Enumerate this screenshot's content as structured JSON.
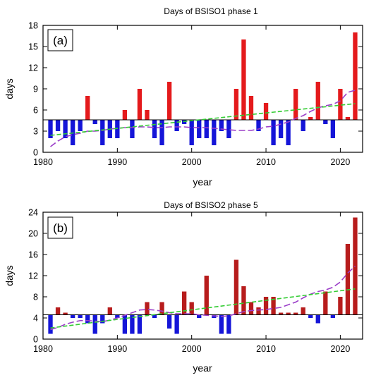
{
  "chart_data": [
    {
      "type": "bar",
      "panel_label": "(a)",
      "title": "Days of BSISO1 phase 1",
      "xlabel": "year",
      "ylabel": "days",
      "xlim": [
        1980,
        2023
      ],
      "ylim": [
        0,
        18
      ],
      "xticks": [
        1980,
        1990,
        2000,
        2010,
        2020
      ],
      "yticks": [
        0,
        3,
        6,
        9,
        12,
        15,
        18
      ],
      "baseline": 4.6,
      "x": [
        1981,
        1982,
        1983,
        1984,
        1985,
        1986,
        1987,
        1988,
        1989,
        1990,
        1991,
        1992,
        1993,
        1994,
        1995,
        1996,
        1997,
        1998,
        1999,
        2000,
        2001,
        2002,
        2003,
        2004,
        2005,
        2006,
        2007,
        2008,
        2009,
        2010,
        2011,
        2012,
        2013,
        2014,
        2015,
        2016,
        2017,
        2018,
        2019,
        2020,
        2021,
        2022
      ],
      "values": [
        2,
        3,
        2,
        1,
        3,
        8,
        4,
        1,
        2,
        2,
        6,
        2,
        9,
        6,
        2,
        1,
        10,
        3,
        4,
        1,
        2,
        2,
        1,
        3,
        2,
        9,
        16,
        8,
        3,
        7,
        1,
        2,
        1,
        9,
        3,
        5,
        10,
        4,
        2,
        9,
        5,
        17
      ],
      "above_color": "#e41a1c",
      "below_color": "#1515d8",
      "series": [
        {
          "values": [
            0.8,
            1.6,
            2.2,
            2.5,
            2.7,
            3.0,
            3.0,
            3.1,
            3.3,
            3.4,
            3.5,
            3.5,
            3.6,
            3.6,
            3.5,
            3.5,
            3.6,
            3.6,
            3.6,
            3.5,
            3.5,
            3.5,
            3.4,
            3.3,
            3.2,
            3.1,
            3.1,
            3.1,
            3.3,
            3.6,
            3.7,
            4.0,
            4.3,
            4.8,
            5.2,
            5.8,
            6.3,
            6.6,
            6.8,
            7.3,
            8.5,
            8.8
          ],
          "color": "#9c3fc9"
        },
        {
          "x": [
            1981,
            2022
          ],
          "values": [
            2.4,
            6.9
          ],
          "color": "#33cc33"
        }
      ]
    },
    {
      "type": "bar",
      "panel_label": "(b)",
      "title": "Days of BSISO2 phase 5",
      "xlabel": "year",
      "ylabel": "days",
      "xlim": [
        1980,
        2023
      ],
      "ylim": [
        0,
        24
      ],
      "xticks": [
        1980,
        1990,
        2000,
        2010,
        2020
      ],
      "yticks": [
        0,
        4,
        8,
        12,
        16,
        20,
        24
      ],
      "baseline": 4.6,
      "x": [
        1981,
        1982,
        1983,
        1984,
        1985,
        1986,
        1987,
        1988,
        1989,
        1990,
        1991,
        1992,
        1993,
        1994,
        1995,
        1996,
        1997,
        1998,
        1999,
        2000,
        2001,
        2002,
        2003,
        2004,
        2005,
        2006,
        2007,
        2008,
        2009,
        2010,
        2011,
        2012,
        2013,
        2014,
        2015,
        2016,
        2017,
        2018,
        2019,
        2020,
        2021,
        2022
      ],
      "values": [
        1,
        6,
        5,
        4,
        4,
        3,
        1,
        3,
        6,
        4,
        1,
        1,
        1,
        7,
        4,
        7,
        2,
        1,
        9,
        7,
        4,
        12,
        4,
        1,
        1,
        15,
        10,
        7,
        6,
        8,
        8,
        5,
        5,
        5,
        6,
        4,
        3,
        9,
        4,
        8,
        18,
        23
      ],
      "above_color": "#b71c1c",
      "below_color": "#1515d8",
      "series": [
        {
          "values": [
            1.8,
            2.2,
            2.8,
            3.2,
            3.5,
            3.5,
            3.4,
            3.3,
            3.6,
            4.0,
            4.5,
            5.0,
            5.5,
            5.6,
            5.5,
            5.3,
            5.0,
            4.8,
            4.8,
            4.8,
            4.6,
            4.5,
            4.4,
            4.3,
            4.4,
            4.8,
            5.2,
            5.4,
            5.5,
            5.6,
            5.8,
            6.0,
            6.5,
            7.0,
            7.8,
            8.5,
            9.0,
            9.3,
            9.8,
            10.8,
            12.5,
            13.8
          ],
          "color": "#9c3fc9"
        },
        {
          "x": [
            1981,
            2022
          ],
          "values": [
            2.1,
            9.5
          ],
          "color": "#33cc33"
        }
      ]
    }
  ]
}
